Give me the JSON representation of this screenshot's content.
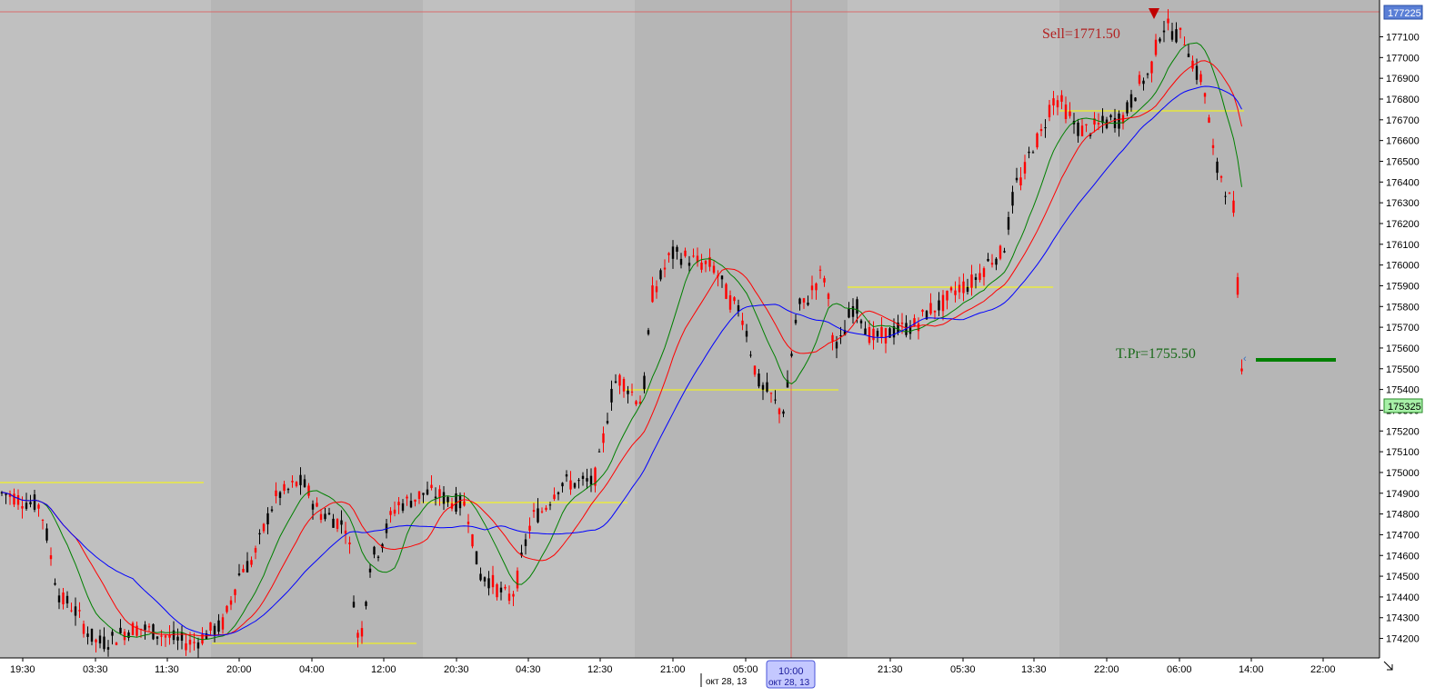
{
  "chart_data": {
    "type": "candlestick",
    "y_axis": {
      "ticks": [
        "177100",
        "177000",
        "176900",
        "176800",
        "176700",
        "176600",
        "176500",
        "176400",
        "176300",
        "176200",
        "176100",
        "176000",
        "175900",
        "175800",
        "175700",
        "175600",
        "175500",
        "175400",
        "175300",
        "175200",
        "175100",
        "175000",
        "174900",
        "174800",
        "174700",
        "174600",
        "174500",
        "174400",
        "174300",
        "174200"
      ],
      "range": [
        174200,
        177225
      ]
    },
    "x_axis": {
      "ticks": [
        "19:30",
        "03:30",
        "11:30",
        "20:00",
        "04:00",
        "12:00",
        "20:30",
        "04:30",
        "12:30",
        "21:00",
        "05:00",
        "10:00",
        "21:30",
        "05:30",
        "13:30",
        "22:00",
        "06:00",
        "14:00",
        "22:00"
      ]
    },
    "price_labels": {
      "current_top": "177225",
      "current_bottom": "175325"
    },
    "date_labels": {
      "left": "окт 28, 13",
      "crosshair_time": "10:00",
      "crosshair_date": "окт 28, 13"
    },
    "annotations": {
      "sell": "Sell=1771.50",
      "take_profit": "T.Pr=1755.50"
    },
    "series": [
      {
        "name": "",
        "color": "#008000",
        "period": "fast"
      },
      {
        "name": "",
        "color": "#ff0000",
        "period": "mid"
      },
      {
        "name": "",
        "color": "#0000ff",
        "period": "slow"
      }
    ],
    "colors": {
      "bull": "#000000",
      "bear": "#ff0000",
      "support": "#ffff00",
      "tp": "#008000"
    },
    "grid": false
  }
}
